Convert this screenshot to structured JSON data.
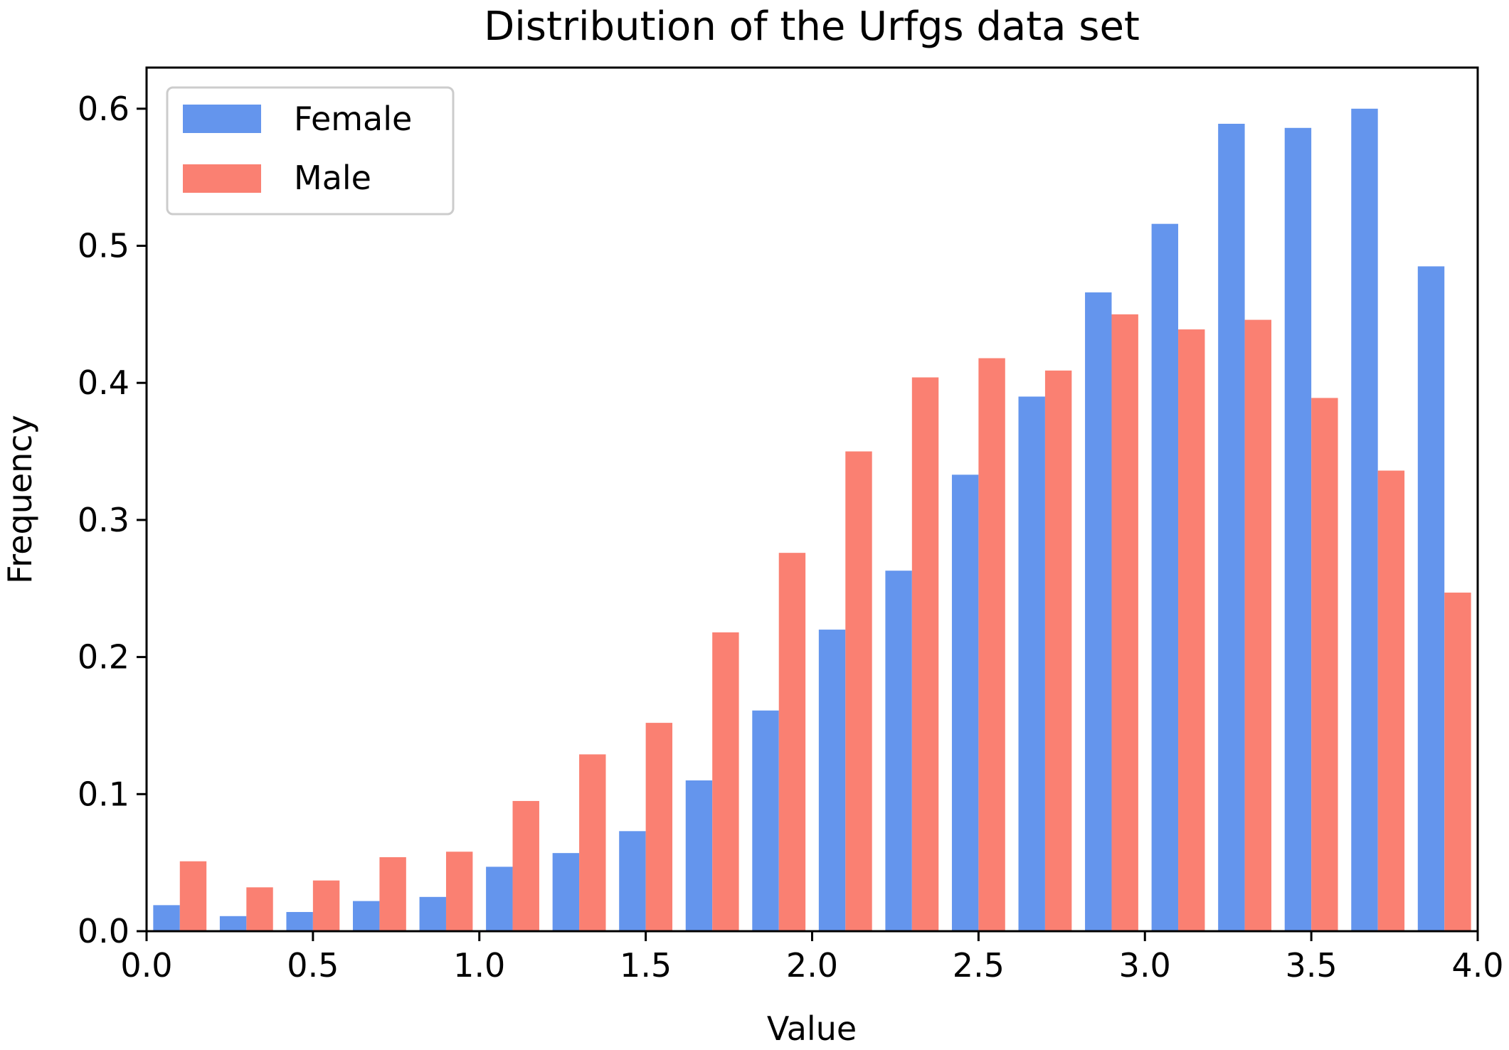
{
  "chart_data": {
    "type": "bar",
    "title": "Distribution of the Urfgs data set",
    "xlabel": "Value",
    "ylabel": "Frequency",
    "xlim": [
      0.0,
      4.0
    ],
    "ylim": [
      0.0,
      0.63
    ],
    "xticks": [
      "0.0",
      "0.5",
      "1.0",
      "1.5",
      "2.0",
      "2.5",
      "3.0",
      "3.5",
      "4.0"
    ],
    "yticks": [
      "0.0",
      "0.1",
      "0.2",
      "0.3",
      "0.4",
      "0.5",
      "0.6"
    ],
    "bin_edges": [
      0.0,
      0.2,
      0.4,
      0.6,
      0.8,
      1.0,
      1.2,
      1.4,
      1.6,
      1.8,
      2.0,
      2.2,
      2.4,
      2.6,
      2.8,
      3.0,
      3.2,
      3.4,
      3.6,
      3.8,
      4.0
    ],
    "grid": false,
    "legend_position": "top-left",
    "series": [
      {
        "name": "Female",
        "color": "#6495ED",
        "values": [
          0.019,
          0.011,
          0.014,
          0.022,
          0.025,
          0.047,
          0.057,
          0.073,
          0.11,
          0.161,
          0.22,
          0.263,
          0.333,
          0.39,
          0.466,
          0.516,
          0.589,
          0.586,
          0.6,
          0.485
        ]
      },
      {
        "name": "Male",
        "color": "#FA8072",
        "values": [
          0.051,
          0.032,
          0.037,
          0.054,
          0.058,
          0.095,
          0.129,
          0.152,
          0.218,
          0.276,
          0.35,
          0.404,
          0.418,
          0.409,
          0.45,
          0.439,
          0.446,
          0.389,
          0.336,
          0.247
        ]
      }
    ]
  }
}
